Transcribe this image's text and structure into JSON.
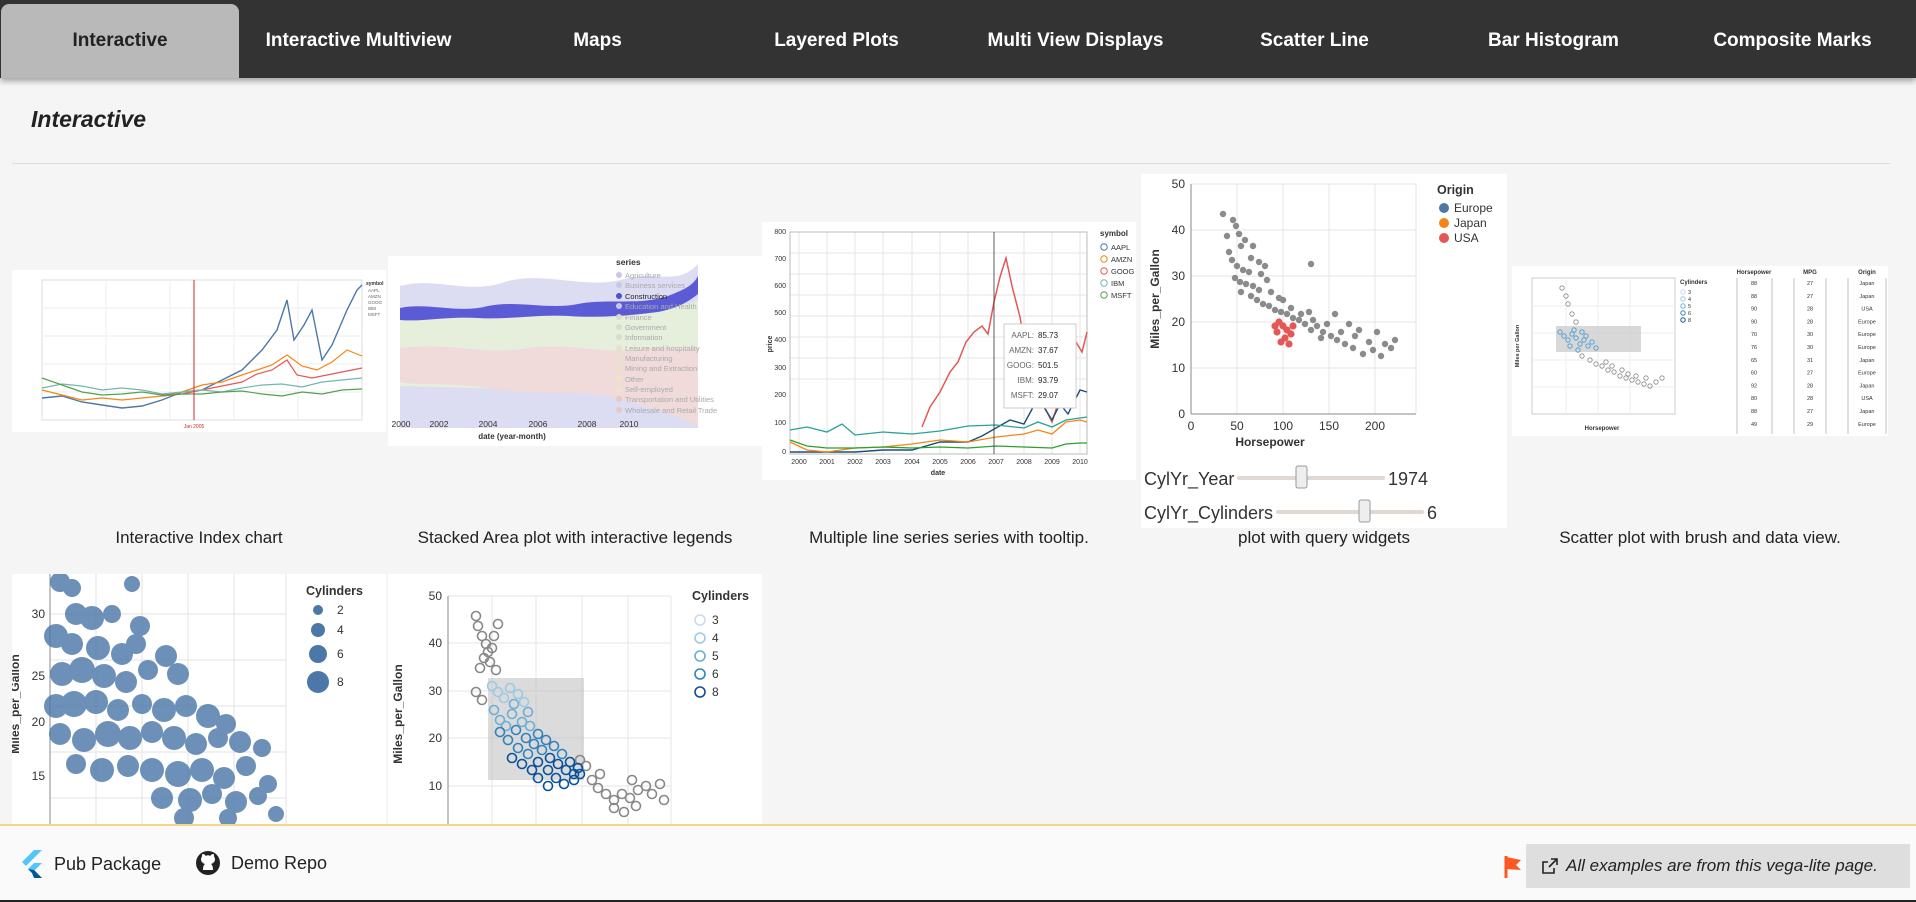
{
  "tabs": [
    {
      "label": "Interactive",
      "active": true
    },
    {
      "label": "Interactive Multiview"
    },
    {
      "label": "Maps"
    },
    {
      "label": "Layered Plots"
    },
    {
      "label": "Multi View Displays"
    },
    {
      "label": "Scatter Line"
    },
    {
      "label": "Bar Histogram"
    },
    {
      "label": "Composite Marks"
    }
  ],
  "section_title": "Interactive",
  "examples": [
    {
      "caption": "Interactive Index chart"
    },
    {
      "caption": "Stacked Area plot with interactive legends"
    },
    {
      "caption": "Multiple line series series with tooltip."
    },
    {
      "caption": "plot with query widgets"
    },
    {
      "caption": "Scatter plot with brush and data view."
    }
  ],
  "thumb1": {
    "legend_title": "symbol",
    "legend": [
      "AAPL",
      "AMZN",
      "GOOG",
      "IBM",
      "MSFT"
    ],
    "marker": "Jan 2005"
  },
  "thumb2": {
    "legend_title": "series",
    "legend": [
      "Agriculture",
      "Business services",
      "Construction",
      "Education and Health",
      "Finance",
      "Government",
      "Information",
      "Leisure and hospitality",
      "Manufacturing",
      "Mining and Extraction",
      "Other",
      "Self-employed",
      "Transportation and Utilities",
      "Wholesale and Retail Trade"
    ],
    "x_ticks": [
      "2000",
      "2002",
      "2004",
      "2006",
      "2008",
      "2010"
    ],
    "x_label": "date (year-month)"
  },
  "thumb3": {
    "y_ticks": [
      "800",
      "700",
      "600",
      "500",
      "400",
      "300",
      "200",
      "100",
      "0"
    ],
    "x_ticks": [
      "2000",
      "2001",
      "2002",
      "2003",
      "2004",
      "2005",
      "2006",
      "2007",
      "2008",
      "2009",
      "2010"
    ],
    "x_label": "date",
    "y_label": "price",
    "legend_title": "symbol",
    "legend": [
      "AAPL",
      "AMZN",
      "GOOG",
      "IBM",
      "MSFT"
    ],
    "tooltip": [
      {
        "k": "AAPL:",
        "v": "85.73"
      },
      {
        "k": "AMZN:",
        "v": "37.67"
      },
      {
        "k": "GOOG:",
        "v": "501.5"
      },
      {
        "k": "IBM:",
        "v": "93.79"
      },
      {
        "k": "MSFT:",
        "v": "29.07"
      }
    ]
  },
  "thumb4": {
    "y_ticks": [
      "50",
      "40",
      "30",
      "20",
      "10",
      "0"
    ],
    "x_ticks": [
      "0",
      "50",
      "100",
      "150",
      "200"
    ],
    "y_label": "Miles_per_Gallon",
    "x_label": "Horsepower",
    "legend_title": "Origin",
    "legend": [
      {
        "label": "Europe",
        "color": "#4c78a8"
      },
      {
        "label": "Japan",
        "color": "#f58518"
      },
      {
        "label": "USA",
        "color": "#e45756"
      }
    ],
    "widgets": [
      {
        "label": "CylYr_Year",
        "value": "1974"
      },
      {
        "label": "CylYr_Cylinders",
        "value": "6"
      }
    ]
  },
  "thumb5": {
    "legend_title": "Cylinders",
    "legend": [
      "3",
      "4",
      "5",
      "6",
      "8"
    ],
    "y_label": "Miles per Gallon",
    "x_label": "Horsepower",
    "table_headers": [
      "Horsepower",
      "MPG",
      "Origin"
    ],
    "table_rows": [
      [
        "88",
        "27",
        "Japan"
      ],
      [
        "88",
        "27",
        "Japan"
      ],
      [
        "90",
        "28",
        "USA"
      ],
      [
        "90",
        "28",
        "Europe"
      ],
      [
        "70",
        "30",
        "Europe"
      ],
      [
        "76",
        "30",
        "Europe"
      ],
      [
        "65",
        "31",
        "Japan"
      ],
      [
        "60",
        "27",
        "Europe"
      ],
      [
        "92",
        "28",
        "Japan"
      ],
      [
        "80",
        "28",
        "USA"
      ],
      [
        "88",
        "27",
        "Japan"
      ],
      [
        "49",
        "29",
        "Europe"
      ]
    ]
  },
  "thumb6": {
    "legend_title": "Cylinders",
    "legend": [
      "2",
      "4",
      "6",
      "8"
    ],
    "y_ticks": [
      "30",
      "25",
      "20",
      "15"
    ],
    "y_label": "Miles_per_Gallon"
  },
  "thumb7": {
    "legend_title": "Cylinders",
    "legend": [
      "3",
      "4",
      "5",
      "6",
      "8"
    ],
    "y_ticks": [
      "50",
      "40",
      "30",
      "20",
      "10"
    ],
    "y_label": "Miles_per_Gallon"
  },
  "footer": {
    "pub_label": "Pub Package",
    "repo_label": "Demo Repo",
    "note": "All examples are from this vega-lite page."
  }
}
